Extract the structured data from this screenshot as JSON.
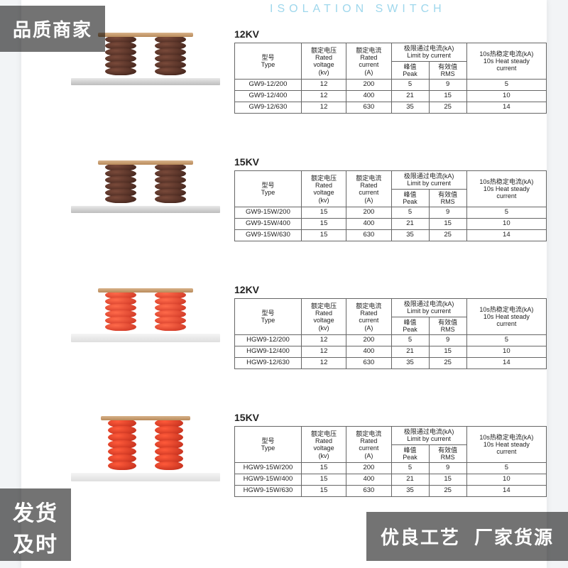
{
  "badges": {
    "top_left": "品质商家",
    "bottom_left_line1": "发货",
    "bottom_left_line2": "及时",
    "bottom_right_a": "优良工艺",
    "bottom_right_b": "厂家货源"
  },
  "header_title": "ISOLATION SWITCH",
  "table_headers": {
    "type": "型号\nType",
    "voltage": "额定电压\nRated\nvoltage\n(kv)",
    "current": "额定电流\nRated\ncurrent\n(A)",
    "limit": "极限通过电流(kA)\nLimit by current",
    "peak": "峰值\nPeak",
    "rms": "有效值\nRMS",
    "heat": "10s热稳定电流(kA)\n10s Heat steady\ncurrent"
  },
  "sections": [
    {
      "title": "12KV",
      "product_style": "brown",
      "rows": [
        {
          "type": "GW9-12/200",
          "v": "12",
          "c": "200",
          "p": "5",
          "r": "9",
          "h": "5"
        },
        {
          "type": "GW9-12/400",
          "v": "12",
          "c": "400",
          "p": "21",
          "r": "15",
          "h": "10"
        },
        {
          "type": "GW9-12/630",
          "v": "12",
          "c": "630",
          "p": "35",
          "r": "25",
          "h": "14"
        }
      ]
    },
    {
      "title": "15KV",
      "product_style": "brown",
      "rows": [
        {
          "type": "GW9-15W/200",
          "v": "15",
          "c": "200",
          "p": "5",
          "r": "9",
          "h": "5"
        },
        {
          "type": "GW9-15W/400",
          "v": "15",
          "c": "400",
          "p": "21",
          "r": "15",
          "h": "10"
        },
        {
          "type": "GW9-15W/630",
          "v": "15",
          "c": "630",
          "p": "35",
          "r": "25",
          "h": "14"
        }
      ]
    },
    {
      "title": "12KV",
      "product_style": "red",
      "rows": [
        {
          "type": "HGW9-12/200",
          "v": "12",
          "c": "200",
          "p": "5",
          "r": "9",
          "h": "5"
        },
        {
          "type": "HGW9-12/400",
          "v": "12",
          "c": "400",
          "p": "21",
          "r": "15",
          "h": "10"
        },
        {
          "type": "HGW9-12/630",
          "v": "12",
          "c": "630",
          "p": "35",
          "r": "25",
          "h": "14"
        }
      ]
    },
    {
      "title": "15KV",
      "product_style": "red2",
      "rows": [
        {
          "type": "HGW9-15W/200",
          "v": "15",
          "c": "200",
          "p": "5",
          "r": "9",
          "h": "5"
        },
        {
          "type": "HGW9-15W/400",
          "v": "15",
          "c": "400",
          "p": "21",
          "r": "15",
          "h": "10"
        },
        {
          "type": "HGW9-15W/630",
          "v": "15",
          "c": "630",
          "p": "35",
          "r": "25",
          "h": "14"
        }
      ]
    }
  ],
  "layout": {
    "block_tops": [
      40,
      220,
      400,
      580
    ],
    "colors": {
      "page_bg": "#ffffff",
      "body_bg": "#f2f4f6",
      "overlay_bg": "rgba(0,0,0,.55)",
      "accent": "#2aa7d6",
      "border": "#666666"
    }
  }
}
